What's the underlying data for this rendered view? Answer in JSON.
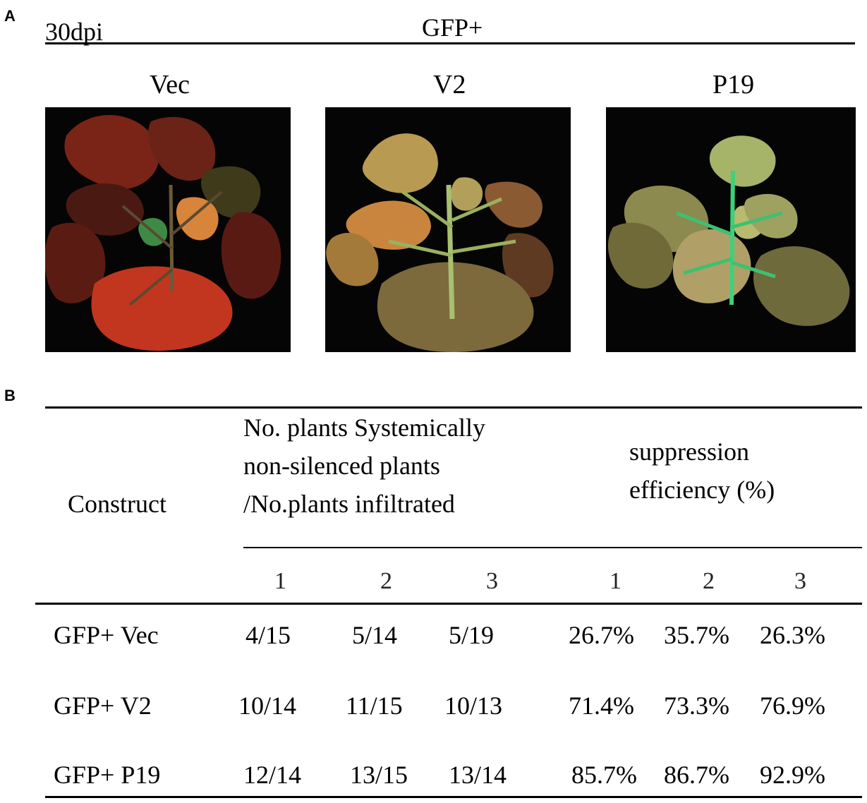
{
  "panel_a": {
    "letter": "A",
    "timepoint": "30dpi",
    "group_label": "GFP+",
    "photos": [
      {
        "label": "Vec",
        "palette": "red"
      },
      {
        "label": "V2",
        "palette": "green"
      },
      {
        "label": "P19",
        "palette": "green"
      }
    ]
  },
  "panel_b": {
    "letter": "B",
    "header": {
      "construct": "Construct",
      "count_line1": "No. plants  Systemically",
      "count_line2": "non-silenced plants",
      "count_line3": "/No.plants infiltrated",
      "eff_line1": "suppression",
      "eff_line2": "efficiency (%)",
      "replicates": [
        "1",
        "2",
        "3",
        "1",
        "2",
        "3"
      ]
    },
    "rows": [
      {
        "construct": "GFP+ Vec",
        "counts": [
          "4/15",
          "5/14",
          "5/19"
        ],
        "efficiency": [
          "26.7%",
          "35.7%",
          "26.3%"
        ]
      },
      {
        "construct": "GFP+ V2",
        "counts": [
          "10/14",
          "11/15",
          "10/13"
        ],
        "efficiency": [
          "71.4%",
          "73.3%",
          "76.9%"
        ]
      },
      {
        "construct": "GFP+ P19",
        "counts": [
          "12/14",
          "13/15",
          "13/14"
        ],
        "efficiency": [
          "85.7%",
          "86.7%",
          "92.9%"
        ]
      }
    ]
  }
}
